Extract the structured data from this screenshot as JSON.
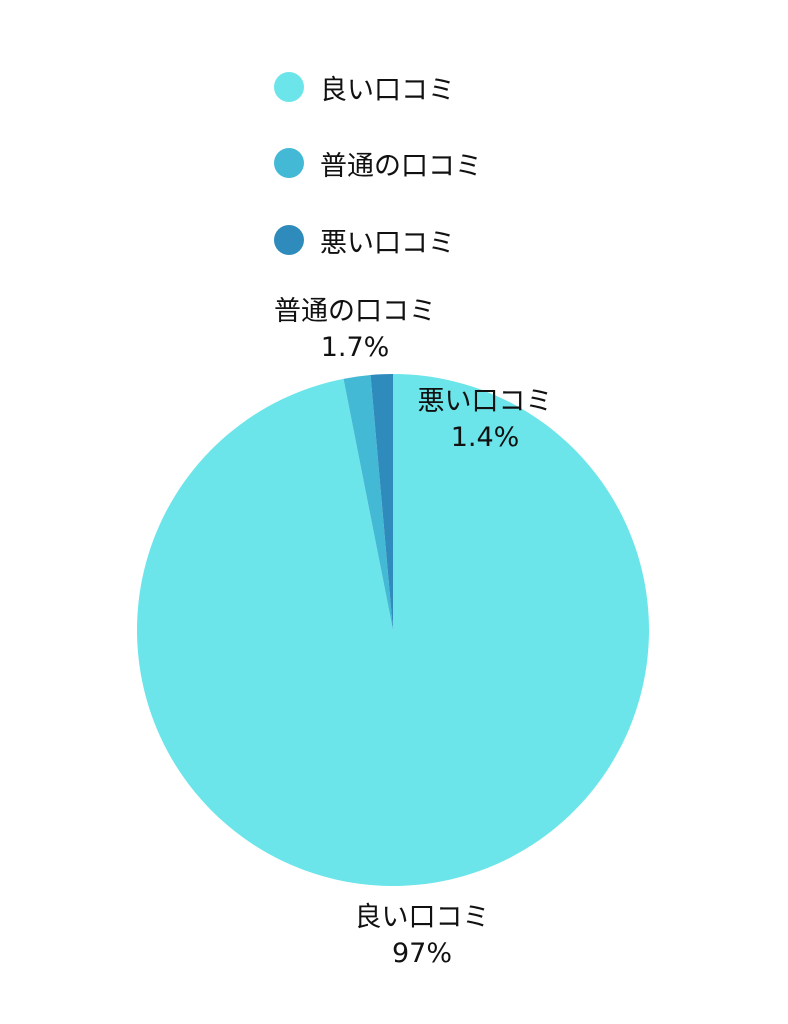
{
  "chart_data": {
    "type": "pie",
    "categories": [
      "良い口コミ",
      "普通の口コミ",
      "悪い口コミ"
    ],
    "values": [
      97,
      1.7,
      1.4
    ],
    "value_labels": [
      "97%",
      "1.7%",
      "1.4%"
    ],
    "colors": [
      "#6be5e9",
      "#43b9d6",
      "#2e8bbb"
    ],
    "start_angle": "top",
    "direction": "clockwise",
    "legend_position": "top"
  }
}
